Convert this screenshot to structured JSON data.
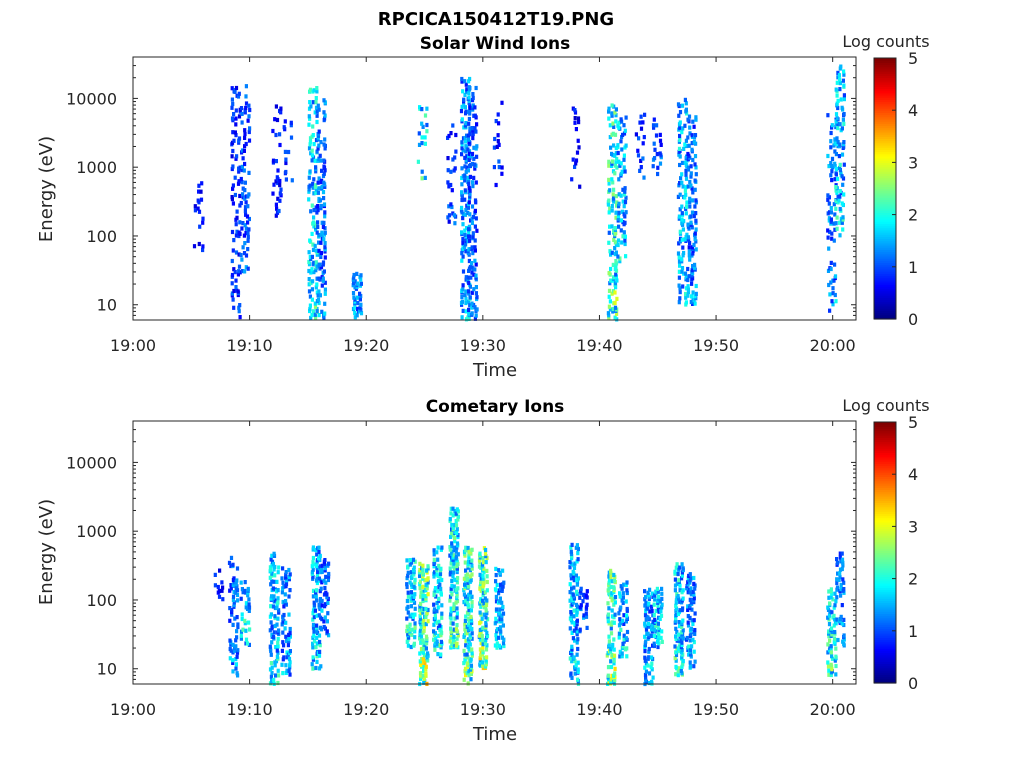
{
  "figure": {
    "title": "RPCICA150412T19.PNG"
  },
  "chart_data": [
    {
      "type": "heatmap",
      "title": "Solar Wind Ions",
      "xlabel": "Time",
      "ylabel": "Energy (eV)",
      "yscale": "log",
      "ylim": [
        6,
        40000
      ],
      "xlim": [
        "19:00",
        "20:02"
      ],
      "xticks": [
        "19:00",
        "19:10",
        "19:20",
        "19:30",
        "19:40",
        "19:50",
        "20:00"
      ],
      "yticks": [
        "10",
        "100",
        "1000",
        "10000"
      ],
      "colorbar": {
        "label": "Log counts",
        "min": 0,
        "max": 5,
        "ticks": [
          "0",
          "1",
          "2",
          "3",
          "4",
          "5"
        ],
        "colormap": "jet"
      },
      "bursts": [
        {
          "t": 19.1,
          "e_low": 6,
          "e_high": 30,
          "peak": 1.5,
          "density": 0.55
        },
        {
          "t": 5.5,
          "e_low": 60,
          "e_high": 600,
          "peak": 0.8,
          "density": 0.2
        },
        {
          "t": 8.7,
          "e_low": 6,
          "e_high": 16000,
          "peak": 1.0,
          "density": 0.22
        },
        {
          "t": 9.5,
          "e_low": 30,
          "e_high": 16000,
          "peak": 1.2,
          "density": 0.28
        },
        {
          "t": 12.2,
          "e_low": 150,
          "e_high": 8000,
          "peak": 0.9,
          "density": 0.15
        },
        {
          "t": 13.2,
          "e_low": 600,
          "e_high": 6000,
          "peak": 1.0,
          "density": 0.12
        },
        {
          "t": 15.3,
          "e_low": 6,
          "e_high": 16000,
          "peak": 2.0,
          "density": 0.35
        },
        {
          "t": 16.0,
          "e_low": 6,
          "e_high": 10000,
          "peak": 1.4,
          "density": 0.32
        },
        {
          "t": 24.7,
          "e_low": 600,
          "e_high": 9000,
          "peak": 2.0,
          "density": 0.18
        },
        {
          "t": 27.2,
          "e_low": 150,
          "e_high": 6000,
          "peak": 1.0,
          "density": 0.2
        },
        {
          "t": 28.4,
          "e_low": 6,
          "e_high": 20000,
          "peak": 1.6,
          "density": 0.4
        },
        {
          "t": 29.0,
          "e_low": 6,
          "e_high": 15000,
          "peak": 1.3,
          "density": 0.35
        },
        {
          "t": 31.2,
          "e_low": 500,
          "e_high": 9000,
          "peak": 0.9,
          "density": 0.12
        },
        {
          "t": 37.8,
          "e_low": 500,
          "e_high": 8000,
          "peak": 0.8,
          "density": 0.1
        },
        {
          "t": 41.0,
          "e_low": 6,
          "e_high": 9000,
          "peak": 2.3,
          "density": 0.35
        },
        {
          "t": 41.8,
          "e_low": 40,
          "e_high": 6000,
          "peak": 1.8,
          "density": 0.3
        },
        {
          "t": 43.4,
          "e_low": 700,
          "e_high": 7000,
          "peak": 1.0,
          "density": 0.15
        },
        {
          "t": 44.8,
          "e_low": 600,
          "e_high": 6000,
          "peak": 1.1,
          "density": 0.2
        },
        {
          "t": 47.0,
          "e_low": 10,
          "e_high": 10000,
          "peak": 1.8,
          "density": 0.35
        },
        {
          "t": 47.8,
          "e_low": 10,
          "e_high": 6000,
          "peak": 1.4,
          "density": 0.35
        },
        {
          "t": 59.8,
          "e_low": 8,
          "e_high": 6000,
          "peak": 1.5,
          "density": 0.25
        },
        {
          "t": 60.5,
          "e_low": 100,
          "e_high": 30000,
          "peak": 1.9,
          "density": 0.35
        }
      ]
    },
    {
      "type": "heatmap",
      "title": "Cometary Ions",
      "xlabel": "Time",
      "ylabel": "Energy (eV)",
      "yscale": "log",
      "ylim": [
        6,
        40000
      ],
      "xlim": [
        "19:00",
        "20:02"
      ],
      "xticks": [
        "19:00",
        "19:10",
        "19:20",
        "19:30",
        "19:40",
        "19:50",
        "20:00"
      ],
      "yticks": [
        "10",
        "100",
        "1000",
        "10000"
      ],
      "colorbar": {
        "label": "Log counts",
        "min": 0,
        "max": 5,
        "ticks": [
          "0",
          "1",
          "2",
          "3",
          "4",
          "5"
        ],
        "colormap": "jet"
      },
      "bursts": [
        {
          "t": 7.2,
          "e_low": 100,
          "e_high": 300,
          "peak": 0.8,
          "density": 0.25
        },
        {
          "t": 8.5,
          "e_low": 8,
          "e_high": 450,
          "peak": 1.4,
          "density": 0.35
        },
        {
          "t": 9.5,
          "e_low": 20,
          "e_high": 200,
          "peak": 1.8,
          "density": 0.35
        },
        {
          "t": 12.0,
          "e_low": 6,
          "e_high": 500,
          "peak": 1.9,
          "density": 0.45
        },
        {
          "t": 13.0,
          "e_low": 8,
          "e_high": 300,
          "peak": 1.5,
          "density": 0.4
        },
        {
          "t": 15.6,
          "e_low": 10,
          "e_high": 600,
          "peak": 1.8,
          "density": 0.45
        },
        {
          "t": 16.3,
          "e_low": 30,
          "e_high": 400,
          "peak": 1.4,
          "density": 0.35
        },
        {
          "t": 23.7,
          "e_low": 20,
          "e_high": 400,
          "peak": 2.0,
          "density": 0.6
        },
        {
          "t": 24.8,
          "e_low": 6,
          "e_high": 350,
          "peak": 2.7,
          "density": 0.65
        },
        {
          "t": 26.0,
          "e_low": 15,
          "e_high": 600,
          "peak": 2.0,
          "density": 0.55
        },
        {
          "t": 27.4,
          "e_low": 20,
          "e_high": 2200,
          "peak": 2.2,
          "density": 0.6
        },
        {
          "t": 28.6,
          "e_low": 6,
          "e_high": 600,
          "peak": 2.4,
          "density": 0.6
        },
        {
          "t": 29.9,
          "e_low": 10,
          "e_high": 600,
          "peak": 2.6,
          "density": 0.55
        },
        {
          "t": 31.3,
          "e_low": 20,
          "e_high": 300,
          "peak": 1.7,
          "density": 0.5
        },
        {
          "t": 37.7,
          "e_low": 6,
          "e_high": 650,
          "peak": 1.8,
          "density": 0.45
        },
        {
          "t": 38.5,
          "e_low": 30,
          "e_high": 150,
          "peak": 1.2,
          "density": 0.3
        },
        {
          "t": 40.9,
          "e_low": 6,
          "e_high": 300,
          "peak": 2.5,
          "density": 0.45
        },
        {
          "t": 41.9,
          "e_low": 15,
          "e_high": 200,
          "peak": 1.7,
          "density": 0.35
        },
        {
          "t": 44.1,
          "e_low": 6,
          "e_high": 150,
          "peak": 1.6,
          "density": 0.5
        },
        {
          "t": 44.9,
          "e_low": 20,
          "e_high": 150,
          "peak": 1.8,
          "density": 0.45
        },
        {
          "t": 46.7,
          "e_low": 8,
          "e_high": 350,
          "peak": 2.0,
          "density": 0.5
        },
        {
          "t": 47.7,
          "e_low": 10,
          "e_high": 250,
          "peak": 1.6,
          "density": 0.45
        },
        {
          "t": 59.8,
          "e_low": 8,
          "e_high": 150,
          "peak": 2.2,
          "density": 0.5
        },
        {
          "t": 60.5,
          "e_low": 20,
          "e_high": 500,
          "peak": 1.4,
          "density": 0.35
        }
      ]
    }
  ]
}
